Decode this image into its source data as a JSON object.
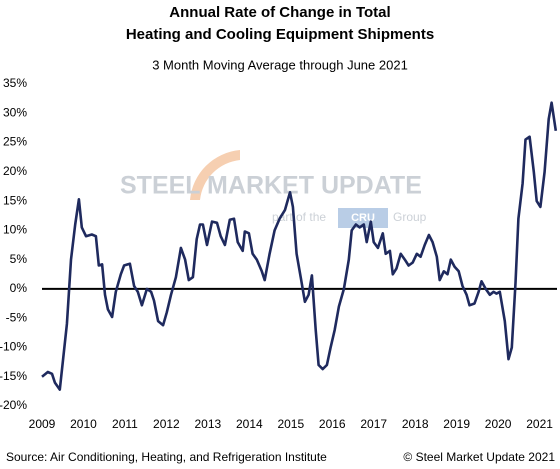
{
  "chart_data": {
    "type": "line",
    "title": [
      "Annual Rate of Change in Total",
      "Heating and Cooling Equipment Shipments"
    ],
    "subtitle": "3 Month Moving Average through June 2021",
    "watermark": {
      "brand": "STEEL MARKET UPDATE",
      "tagline": "part of the",
      "group_badge": "CRU",
      "group": "Group"
    },
    "source": "Source: Air Conditioning, Heating, and Refrigeration Institute",
    "copyright": "© Steel Market Update 2021",
    "x": [
      2009.0,
      2009.14,
      2009.24,
      2009.31,
      2009.43,
      2009.51,
      2009.6,
      2009.7,
      2009.8,
      2009.89,
      2009.96,
      2010.06,
      2010.2,
      2010.3,
      2010.37,
      2010.45,
      2010.52,
      2010.59,
      2010.69,
      2010.78,
      2010.9,
      2010.98,
      2011.12,
      2011.22,
      2011.31,
      2011.41,
      2011.53,
      2011.63,
      2011.7,
      2011.8,
      2011.92,
      2012.01,
      2012.11,
      2012.23,
      2012.35,
      2012.45,
      2012.54,
      2012.64,
      2012.73,
      2012.81,
      2012.88,
      2012.98,
      2013.1,
      2013.22,
      2013.31,
      2013.41,
      2013.53,
      2013.63,
      2013.72,
      2013.84,
      2013.89,
      2013.99,
      2014.08,
      2014.18,
      2014.3,
      2014.37,
      2014.49,
      2014.61,
      2014.73,
      2014.86,
      2014.98,
      2015.05,
      2015.14,
      2015.24,
      2015.34,
      2015.43,
      2015.51,
      2015.6,
      2015.67,
      2015.77,
      2015.87,
      2015.96,
      2016.06,
      2016.16,
      2016.28,
      2016.4,
      2016.47,
      2016.57,
      2016.66,
      2016.76,
      2016.83,
      2016.93,
      2017.0,
      2017.1,
      2017.22,
      2017.29,
      2017.39,
      2017.46,
      2017.55,
      2017.65,
      2017.75,
      2017.84,
      2017.94,
      2018.04,
      2018.13,
      2018.23,
      2018.33,
      2018.42,
      2018.52,
      2018.59,
      2018.69,
      2018.78,
      2018.86,
      2018.95,
      2019.05,
      2019.14,
      2019.24,
      2019.31,
      2019.43,
      2019.53,
      2019.6,
      2019.7,
      2019.8,
      2019.89,
      2019.96,
      2020.04,
      2020.16,
      2020.25,
      2020.33,
      2020.42,
      2020.49,
      2020.59,
      2020.66,
      2020.76,
      2020.86,
      2020.93,
      2021.02,
      2021.12,
      2021.22,
      2021.29,
      2021.39
    ],
    "series": [
      {
        "name": "Shipments",
        "color": "#1f2a5e",
        "values": [
          -15,
          -14.2,
          -14.5,
          -16,
          -17.2,
          -12,
          -6,
          5,
          11,
          15.3,
          10.5,
          9,
          9.3,
          9,
          4,
          4.2,
          -1,
          -3.5,
          -4.8,
          -0.5,
          2.5,
          4,
          4.3,
          0.5,
          -0.5,
          -2.8,
          0,
          -0.5,
          -2,
          -5.5,
          -6.2,
          -4,
          -1,
          2,
          7,
          5,
          1.5,
          2,
          8.5,
          11,
          11,
          7.5,
          11.5,
          11.3,
          9,
          7.5,
          11.8,
          12,
          8,
          6.5,
          9.8,
          9.5,
          6,
          5,
          3,
          1.5,
          6,
          10,
          12,
          13.5,
          16.5,
          14,
          6,
          2,
          -2.2,
          -1,
          2.3,
          -7,
          -13,
          -13.7,
          -13,
          -10,
          -7,
          -3,
          0,
          5,
          10,
          11,
          10.5,
          11,
          8,
          11.5,
          8,
          7,
          9.5,
          6,
          6.5,
          2.5,
          3.5,
          6,
          5,
          4,
          4.5,
          6,
          5.5,
          7.5,
          9.2,
          8,
          5.5,
          1.5,
          3,
          2.5,
          5,
          3.8,
          3,
          0.5,
          -1,
          -2.8,
          -2.5,
          -0.5,
          1.3,
          0,
          -1,
          -0.5,
          -0.8,
          -0.5,
          -5.5,
          -12,
          -10,
          1,
          12,
          18,
          25.5,
          26,
          20,
          15,
          14,
          20,
          29,
          31.8,
          27
        ]
      }
    ],
    "xlim": [
      2009,
      2021.42
    ],
    "xticks": [
      2009,
      2010,
      2011,
      2012,
      2013,
      2014,
      2015,
      2016,
      2017,
      2018,
      2019,
      2020,
      2021
    ],
    "ylim": [
      -20,
      35
    ],
    "yticks": [
      {
        "value": -20,
        "label": "-20%"
      },
      {
        "value": -15,
        "label": "-15%"
      },
      {
        "value": -10,
        "label": "-10%"
      },
      {
        "value": -5,
        "label": "-5%"
      },
      {
        "value": 0,
        "label": "0%"
      },
      {
        "value": 5,
        "label": "5%"
      },
      {
        "value": 10,
        "label": "10%"
      },
      {
        "value": 15,
        "label": "15%"
      },
      {
        "value": 20,
        "label": "20%"
      },
      {
        "value": 25,
        "label": "25%"
      },
      {
        "value": 30,
        "label": "30%"
      },
      {
        "value": 35,
        "label": "35%"
      }
    ],
    "grid": false,
    "zero_line": true
  }
}
